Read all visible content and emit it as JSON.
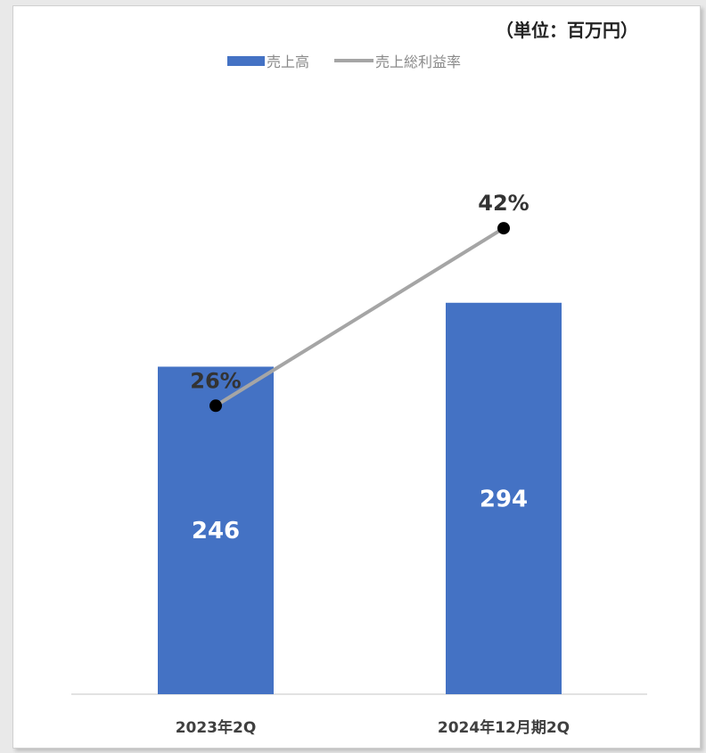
{
  "unit_label": "（単位：百万円）",
  "legend": {
    "items": [
      {
        "label": "売上高",
        "kind": "bar",
        "color": "#4472c4"
      },
      {
        "label": "売上総利益率",
        "kind": "line",
        "color": "#a5a5a5"
      }
    ]
  },
  "chart_data": {
    "type": "bar",
    "categories": [
      "2023年2Q",
      "2024年12月期2Q"
    ],
    "series": [
      {
        "name": "売上高",
        "type": "bar",
        "values": [
          246,
          294
        ],
        "labels": [
          "246",
          "294"
        ],
        "color": "#4472c4"
      },
      {
        "name": "売上総利益率",
        "type": "line",
        "values": [
          26,
          42
        ],
        "labels": [
          "26%",
          "42%"
        ],
        "color": "#a5a5a5",
        "marker_color": "#000000"
      }
    ],
    "y_bar_range": [
      0,
      500
    ],
    "y_line_range": [
      0,
      60
    ],
    "grid": false,
    "legend_position": "top"
  }
}
